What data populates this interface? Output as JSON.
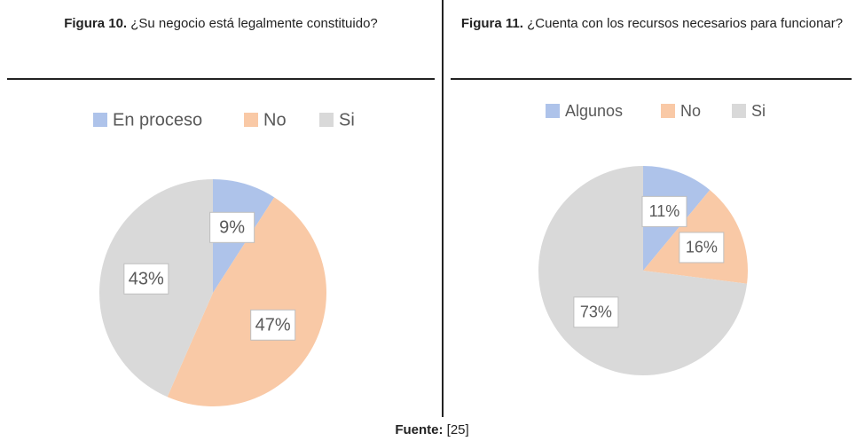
{
  "chart_data": [
    {
      "type": "pie",
      "figure_label": "Figura 10.",
      "title": "¿Su negocio está legalmente constituido?",
      "categories": [
        "En proceso",
        "No",
        "Si"
      ],
      "values": [
        9,
        47,
        43
      ],
      "value_labels": [
        "9%",
        "47%",
        "43%"
      ],
      "colors": [
        "#aec3ea",
        "#f9c9a6",
        "#d9d9d9"
      ],
      "legend": "top"
    },
    {
      "type": "pie",
      "figure_label": "Figura 11.",
      "title": "¿Cuenta con los recursos necesarios para funcionar?",
      "categories": [
        "Algunos",
        "No",
        "Si"
      ],
      "values": [
        11,
        16,
        73
      ],
      "value_labels": [
        "11%",
        "16%",
        "73%"
      ],
      "colors": [
        "#aec3ea",
        "#f9c9a6",
        "#d9d9d9"
      ],
      "legend": "top"
    }
  ],
  "source_label": "Fuente:",
  "source": "[25]"
}
